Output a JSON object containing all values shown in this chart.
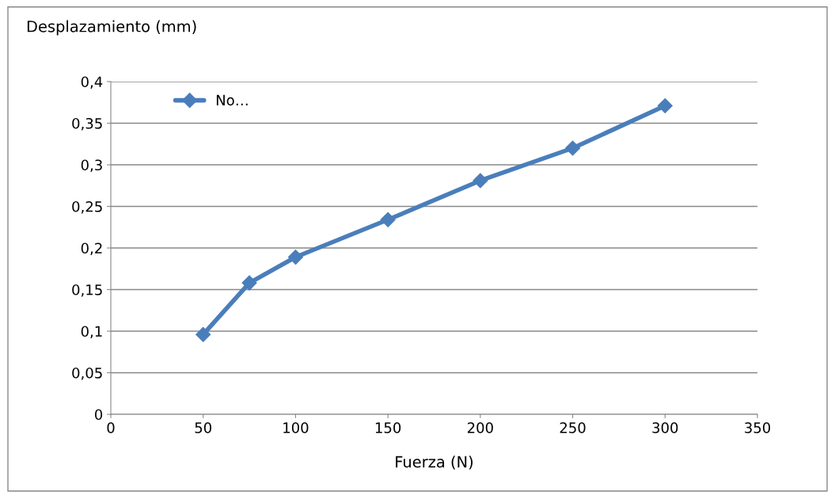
{
  "chart_data": {
    "type": "line",
    "xlabel": "Fuerza (N)",
    "ylabel": "Desplazamiento (mm)",
    "x": [
      50,
      75,
      100,
      150,
      200,
      250,
      300
    ],
    "series": [
      {
        "name": "No…",
        "color": "#4a7ebb",
        "values": [
          0.096,
          0.158,
          0.189,
          0.234,
          0.281,
          0.32,
          0.371
        ]
      }
    ],
    "xlim": [
      0,
      350
    ],
    "xticks": [
      0,
      50,
      100,
      150,
      200,
      250,
      300,
      350
    ],
    "ylim": [
      0,
      0.4
    ],
    "yticks": [
      {
        "value": 0,
        "label": "0"
      },
      {
        "value": 0.05,
        "label": "0,05"
      },
      {
        "value": 0.1,
        "label": "0,1"
      },
      {
        "value": 0.15,
        "label": "0,15"
      },
      {
        "value": 0.2,
        "label": "0,2"
      },
      {
        "value": 0.25,
        "label": "0,25"
      },
      {
        "value": 0.3,
        "label": "0,3"
      },
      {
        "value": 0.35,
        "label": "0,35"
      },
      {
        "value": 0.4,
        "label": "0,4"
      }
    ],
    "grid": "y",
    "legend": "top left",
    "marker": "diamond",
    "line_style": "solid"
  }
}
